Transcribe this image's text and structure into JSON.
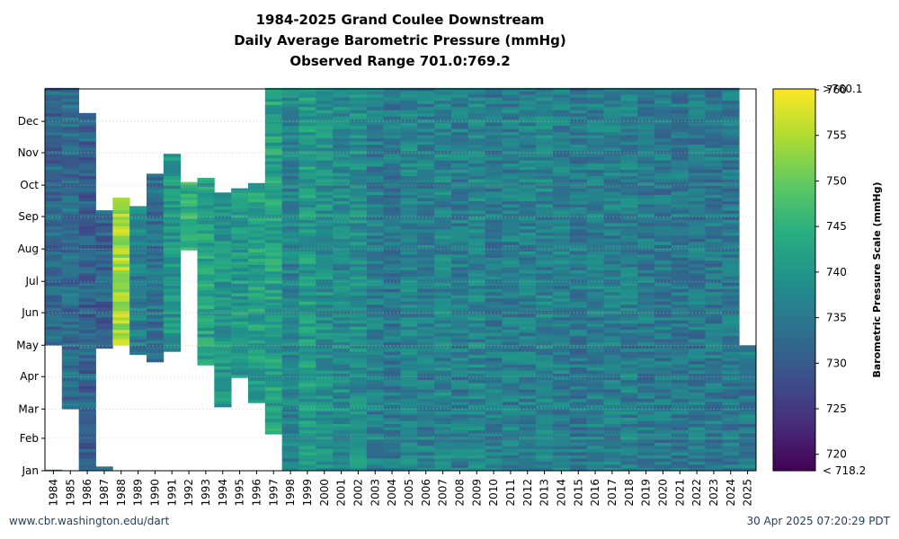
{
  "title": {
    "line1": "1984-2025 Grand Coulee Downstream",
    "line2": "Daily Average Barometric Pressure (mmHg)",
    "line3": "Observed Range 701.0:769.2"
  },
  "footer": {
    "left": "www.cbr.washington.edu/dart",
    "right": "30 Apr 2025 07:20:29 PDT"
  },
  "chart_data": {
    "type": "heatmap",
    "x_label": "",
    "y_label": "",
    "years": [
      "1984",
      "1985",
      "1986",
      "1987",
      "1988",
      "1989",
      "1990",
      "1991",
      "1992",
      "1993",
      "1994",
      "1995",
      "1996",
      "1997",
      "1998",
      "1999",
      "2000",
      "2001",
      "2002",
      "2003",
      "2004",
      "2005",
      "2006",
      "2007",
      "2008",
      "2009",
      "2010",
      "2011",
      "2012",
      "2013",
      "2014",
      "2015",
      "2016",
      "2017",
      "2018",
      "2019",
      "2020",
      "2021",
      "2022",
      "2023",
      "2024",
      "2025"
    ],
    "month_ticks": [
      "Jan",
      "Feb",
      "Mar",
      "Apr",
      "May",
      "Jun",
      "Jul",
      "Aug",
      "Sep",
      "Oct",
      "Nov",
      "Dec"
    ],
    "month_start_days": [
      1,
      32,
      60,
      91,
      121,
      152,
      182,
      213,
      244,
      274,
      305,
      335
    ],
    "y_range_days": [
      1,
      366
    ],
    "colorbar": {
      "label": "Barometric Pressure Scale (mmHg)",
      "min": 718.2,
      "max": 760.1,
      "min_label": "< 718.2",
      "max_label": ">760.1",
      "ticks": [
        720,
        725,
        730,
        735,
        740,
        745,
        750,
        755,
        760
      ],
      "colormap": "viridis"
    },
    "coverage_days": [
      {
        "year": "1984",
        "segments": [
          [
            1,
            1
          ],
          [
            121,
            366
          ]
        ],
        "level": 732
      },
      {
        "year": "1985",
        "segments": [
          [
            60,
            366
          ]
        ],
        "level": 733
      },
      {
        "year": "1986",
        "segments": [
          [
            1,
            342
          ]
        ],
        "level": 731
      },
      {
        "year": "1987",
        "segments": [
          [
            1,
            4
          ],
          [
            118,
            249
          ]
        ],
        "level": 731
      },
      {
        "year": "1988",
        "segments": [
          [
            121,
            261
          ]
        ],
        "level": 755
      },
      {
        "year": "1989",
        "segments": [
          [
            112,
            253
          ]
        ],
        "level": 736
      },
      {
        "year": "1990",
        "segments": [
          [
            105,
            284
          ]
        ],
        "level": 734
      },
      {
        "year": "1991",
        "segments": [
          [
            115,
            303
          ]
        ],
        "level": 740
      },
      {
        "year": "1992",
        "segments": [
          [
            212,
            276
          ]
        ],
        "level": 745
      },
      {
        "year": "1993",
        "segments": [
          [
            102,
            280
          ]
        ],
        "level": 742
      },
      {
        "year": "1994",
        "segments": [
          [
            62,
            266
          ]
        ],
        "level": 740
      },
      {
        "year": "1995",
        "segments": [
          [
            90,
            270
          ]
        ],
        "level": 741
      },
      {
        "year": "1996",
        "segments": [
          [
            66,
            275
          ]
        ],
        "level": 742
      },
      {
        "year": "1997",
        "segments": [
          [
            36,
            366
          ]
        ],
        "level": 742
      },
      {
        "year": "1998",
        "segments": [
          [
            1,
            366
          ]
        ],
        "level": 737
      },
      {
        "year": "1999",
        "segments": [
          [
            1,
            366
          ]
        ],
        "level": 741
      },
      {
        "year": "2000",
        "segments": [
          [
            1,
            366
          ]
        ],
        "level": 739
      },
      {
        "year": "2001",
        "segments": [
          [
            1,
            366
          ]
        ],
        "level": 738
      },
      {
        "year": "2002",
        "segments": [
          [
            1,
            366
          ]
        ],
        "level": 739
      },
      {
        "year": "2003",
        "segments": [
          [
            1,
            366
          ]
        ],
        "level": 736
      },
      {
        "year": "2004",
        "segments": [
          [
            1,
            366
          ]
        ],
        "level": 735
      },
      {
        "year": "2005",
        "segments": [
          [
            1,
            366
          ]
        ],
        "level": 737
      },
      {
        "year": "2006",
        "segments": [
          [
            1,
            366
          ]
        ],
        "level": 736
      },
      {
        "year": "2007",
        "segments": [
          [
            1,
            366
          ]
        ],
        "level": 737
      },
      {
        "year": "2008",
        "segments": [
          [
            1,
            366
          ]
        ],
        "level": 736
      },
      {
        "year": "2009",
        "segments": [
          [
            1,
            366
          ]
        ],
        "level": 737
      },
      {
        "year": "2010",
        "segments": [
          [
            1,
            366
          ]
        ],
        "level": 735
      },
      {
        "year": "2011",
        "segments": [
          [
            1,
            366
          ]
        ],
        "level": 736
      },
      {
        "year": "2012",
        "segments": [
          [
            1,
            366
          ]
        ],
        "level": 736
      },
      {
        "year": "2013",
        "segments": [
          [
            1,
            366
          ]
        ],
        "level": 737
      },
      {
        "year": "2014",
        "segments": [
          [
            1,
            366
          ]
        ],
        "level": 736
      },
      {
        "year": "2015",
        "segments": [
          [
            1,
            366
          ]
        ],
        "level": 735
      },
      {
        "year": "2016",
        "segments": [
          [
            1,
            366
          ]
        ],
        "level": 736
      },
      {
        "year": "2017",
        "segments": [
          [
            1,
            366
          ]
        ],
        "level": 736
      },
      {
        "year": "2018",
        "segments": [
          [
            1,
            366
          ]
        ],
        "level": 736
      },
      {
        "year": "2019",
        "segments": [
          [
            1,
            366
          ]
        ],
        "level": 735
      },
      {
        "year": "2020",
        "segments": [
          [
            1,
            366
          ]
        ],
        "level": 735
      },
      {
        "year": "2021",
        "segments": [
          [
            1,
            366
          ]
        ],
        "level": 735
      },
      {
        "year": "2022",
        "segments": [
          [
            1,
            366
          ]
        ],
        "level": 735
      },
      {
        "year": "2023",
        "segments": [
          [
            1,
            366
          ]
        ],
        "level": 735
      },
      {
        "year": "2024",
        "segments": [
          [
            1,
            366
          ]
        ],
        "level": 735
      },
      {
        "year": "2025",
        "segments": [
          [
            1,
            120
          ]
        ],
        "level": 735
      }
    ]
  }
}
